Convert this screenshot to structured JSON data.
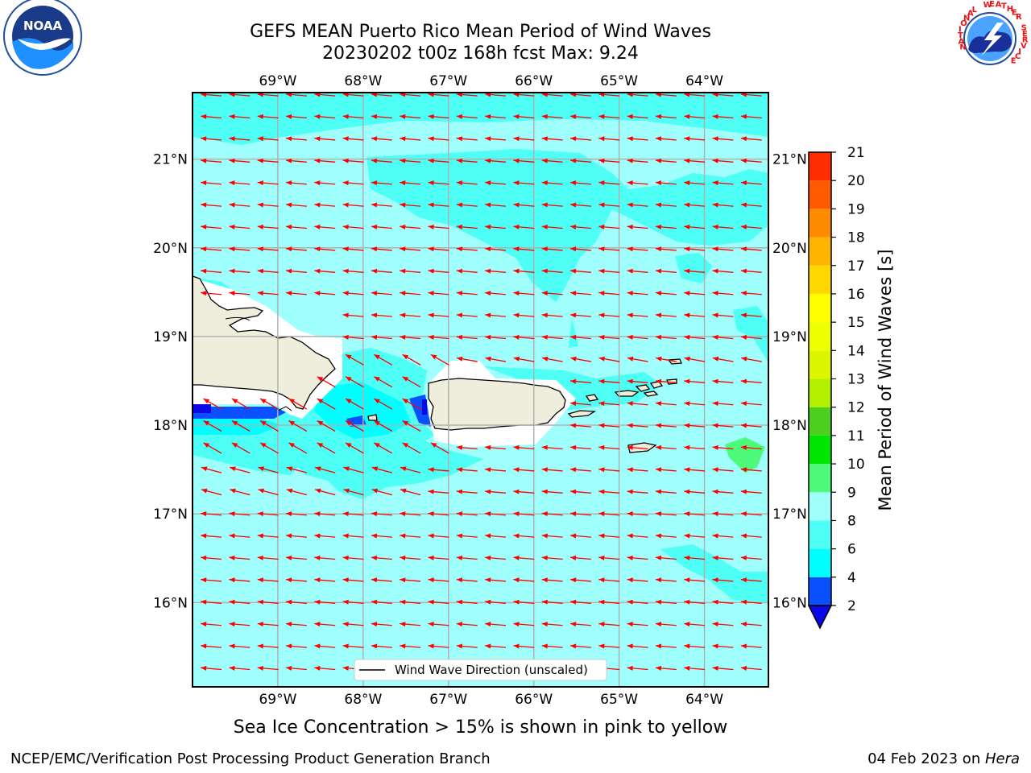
{
  "header": {
    "title_line1": "GEFS MEAN Puerto Rico Mean Period of Wind Waves",
    "title_line2": "20230202 t00z 168h fcst   Max: 9.24"
  },
  "footer": {
    "note": "Sea Ice Concentration > 15% is shown in pink to yellow",
    "branch": "NCEP/EMC/Verification Post Processing Product Generation Branch",
    "date": "04 Feb 2023 on ",
    "machine": "Hera"
  },
  "logos": {
    "noaa_text": "NOAA",
    "nws_text": "NATIONAL WEATHER SERVICE"
  },
  "map": {
    "lon_labels": [
      "69°W",
      "68°W",
      "67°W",
      "66°W",
      "65°W",
      "64°W"
    ],
    "lat_labels": [
      "21°N",
      "20°N",
      "19°N",
      "18°N",
      "17°N",
      "16°N"
    ],
    "legend_label": "Wind Wave Direction (unscaled)",
    "arrow_color": "#ff0000",
    "background_color": "#9efffc"
  },
  "colorbar": {
    "label": "Mean Period of Wind Waves [s]",
    "ticks": [
      "2",
      "4",
      "6",
      "8",
      "9",
      "10",
      "11",
      "12",
      "13",
      "14",
      "15",
      "16",
      "17",
      "18",
      "19",
      "20",
      "21"
    ],
    "colors": [
      "#0a50ff",
      "#00ffff",
      "#4dfff4",
      "#a0fffa",
      "#4dfa7a",
      "#00e600",
      "#4ccf1f",
      "#b2f000",
      "#dcf500",
      "#f0ff00",
      "#ffff00",
      "#ffd700",
      "#ffb400",
      "#ff8c00",
      "#ff5a00",
      "#ff2d00",
      "#ff0000"
    ],
    "under_color": "#0a08e6"
  }
}
